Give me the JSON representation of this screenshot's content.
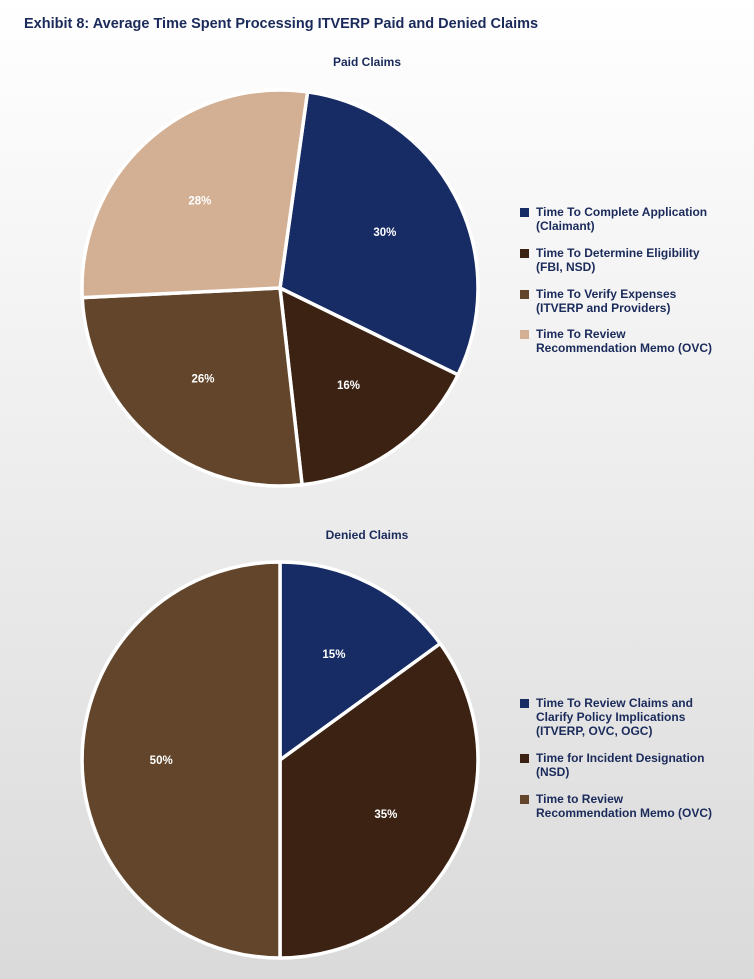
{
  "header": {
    "title": "Exhibit 8: Average Time Spent Processing ITVERP Paid and Denied Claims"
  },
  "colors": {
    "navy": "#172c64",
    "dark_brown": "#3b2213",
    "brown": "#62452a",
    "tan": "#d3b094"
  },
  "chart_data": [
    {
      "type": "pie",
      "title": "Paid Claims",
      "legend_position": "right",
      "slices": [
        {
          "label": "Time To Complete Application (Claimant)",
          "value": 30,
          "display": "30%",
          "color": "#172c64"
        },
        {
          "label": "Time To Determine Eligibility (FBI, NSD)",
          "value": 16,
          "display": "16%",
          "color": "#3b2213"
        },
        {
          "label": "Time To Verify Expenses (ITVERP and Providers)",
          "value": 26,
          "display": "26%",
          "color": "#62452a"
        },
        {
          "label": "Time To Review Recommendation Memo (OVC)",
          "value": 28,
          "display": "28%",
          "color": "#d3b094"
        }
      ]
    },
    {
      "type": "pie",
      "title": "Denied Claims",
      "legend_position": "right",
      "slices": [
        {
          "label": "Time To Review Claims and Clarify Policy Implications (ITVERP, OVC, OGC)",
          "value": 15,
          "display": "15%",
          "color": "#172c64"
        },
        {
          "label": "Time for Incident Designation (NSD)",
          "value": 35,
          "display": "35%",
          "color": "#3b2213"
        },
        {
          "label": "Time to Review Recommendation Memo (OVC)",
          "value": 50,
          "display": "50%",
          "color": "#62452a"
        }
      ]
    }
  ]
}
